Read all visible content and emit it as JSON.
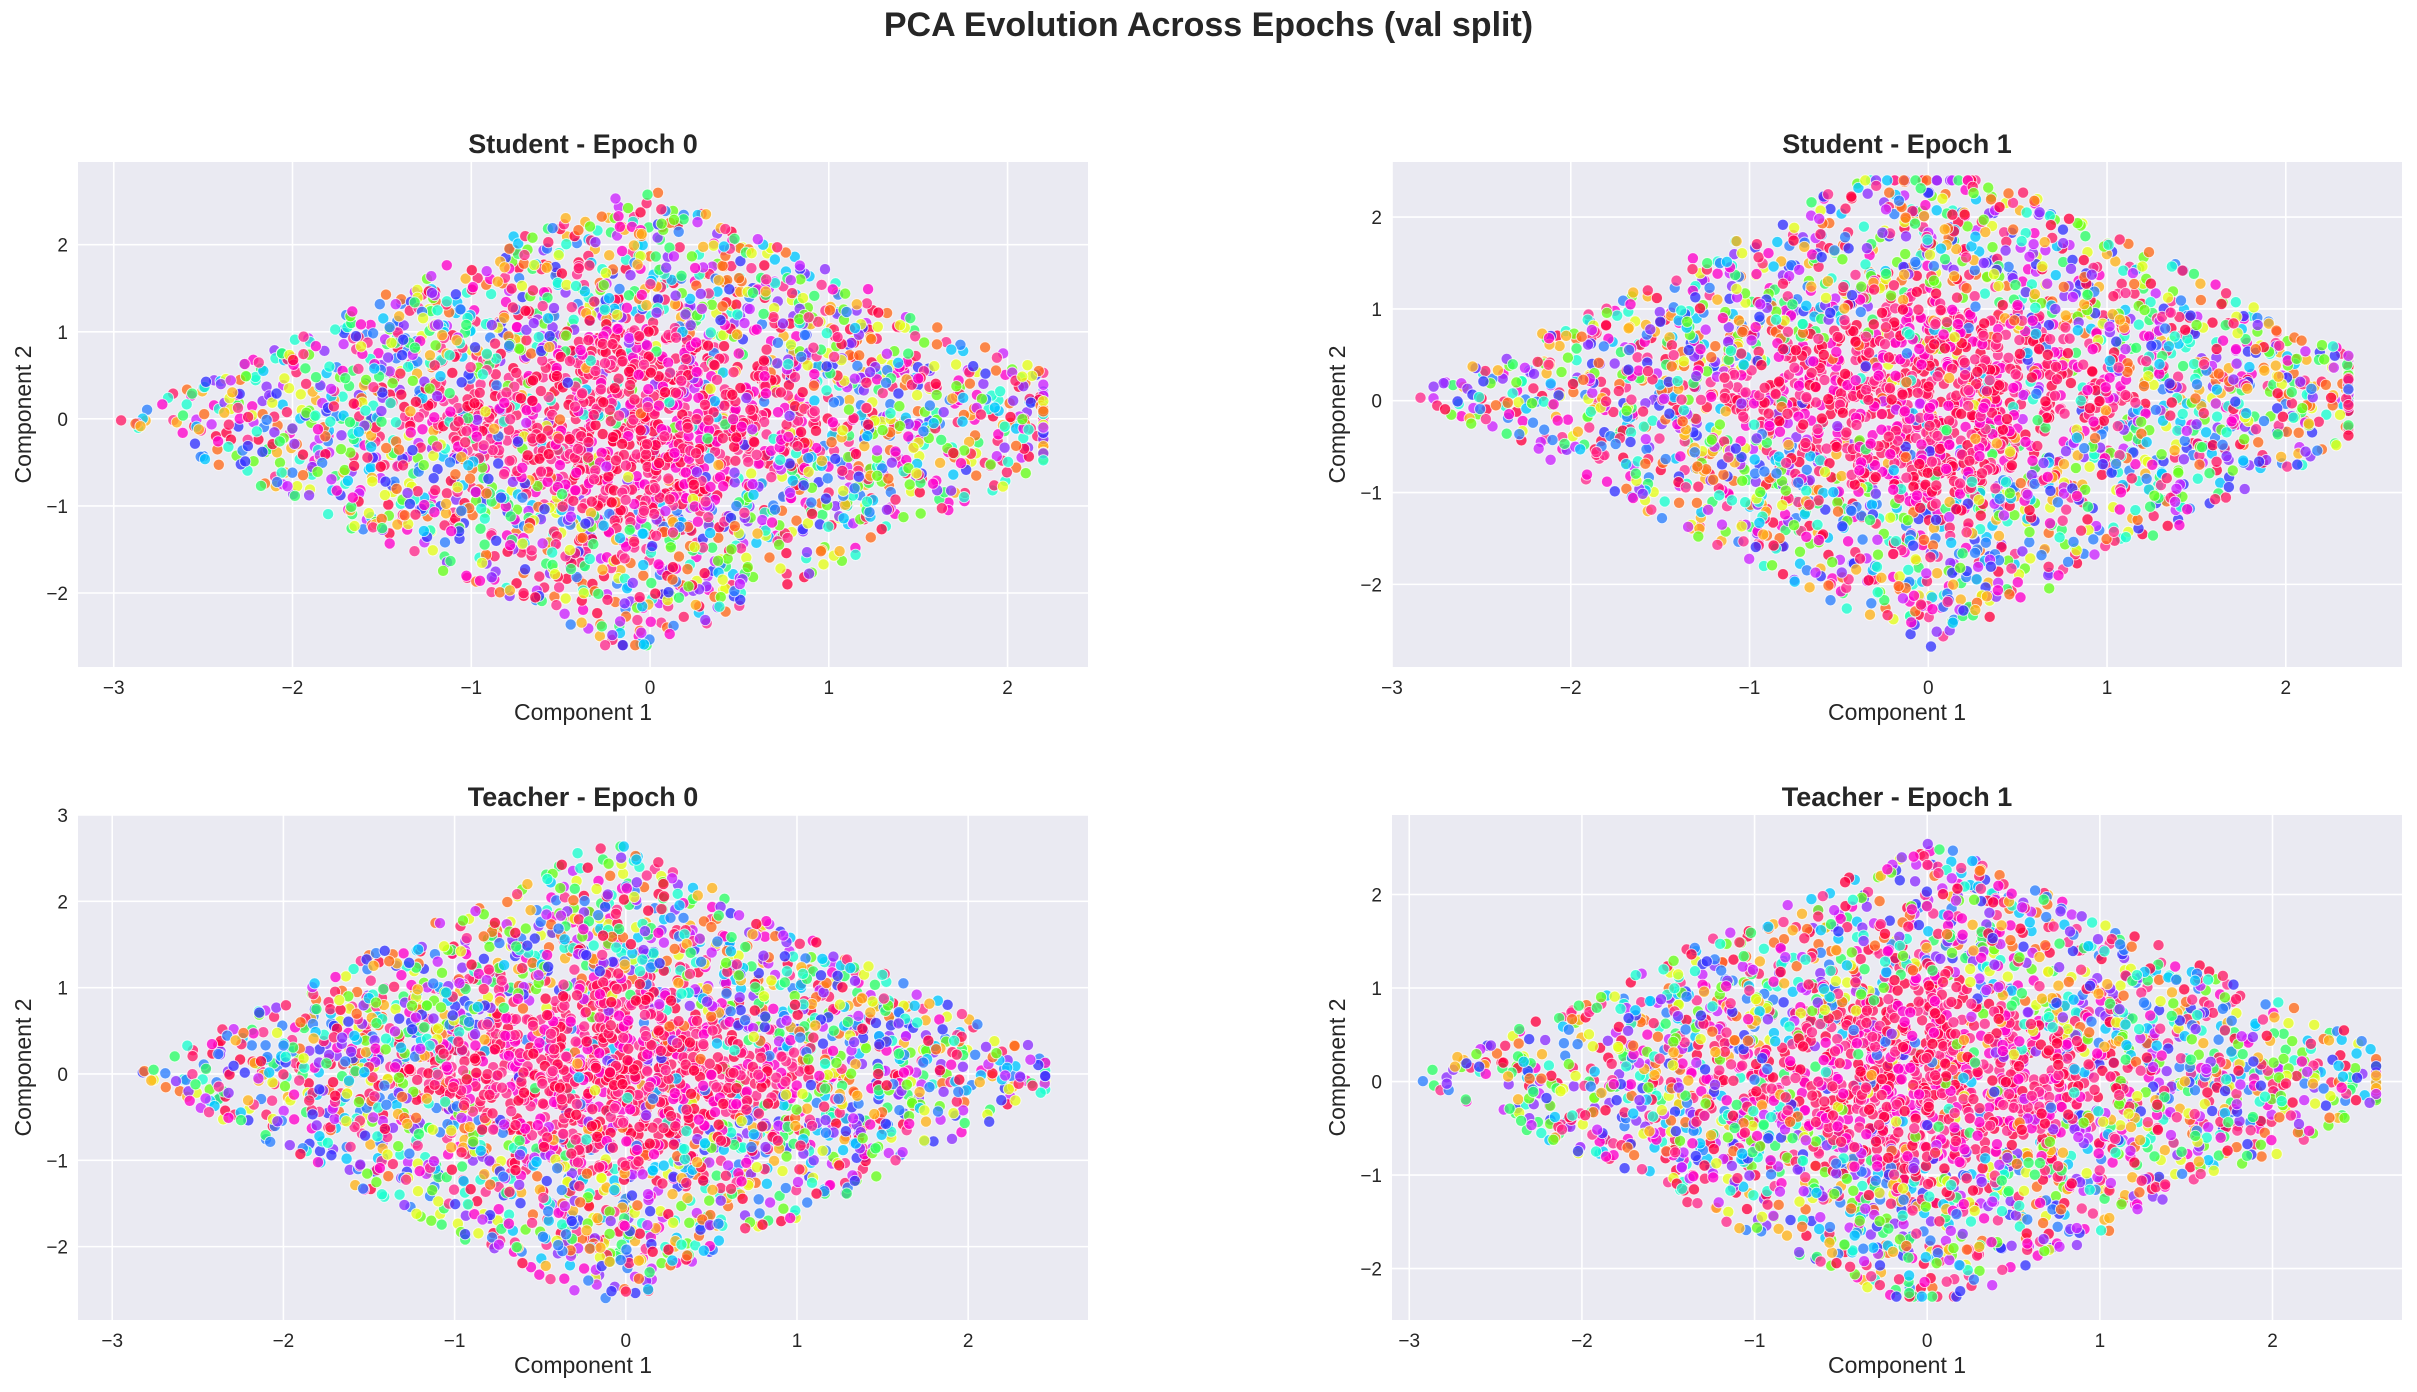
{
  "figure": {
    "title": "PCA Evolution Across Epochs (val split)",
    "background_color": "#ffffff",
    "axes_facecolor": "#EAEAF2",
    "grid_color": "#ffffff",
    "text_color": "#262626",
    "point_colors": [
      "#ff0040",
      "#ff1a66",
      "#ff2a8c",
      "#ff00cc",
      "#cc22ff",
      "#8c2eff",
      "#3333ff",
      "#2a7fff",
      "#00c8ff",
      "#1affd0",
      "#2bff66",
      "#66ff1a",
      "#e6ff1a",
      "#ffb31a",
      "#ff6a1a"
    ]
  },
  "chart_data": [
    {
      "type": "scatter",
      "title": "Student - Epoch 0",
      "xlabel": "Component 1",
      "ylabel": "Component 2",
      "xlim": [
        -3.2,
        2.45
      ],
      "ylim": [
        -2.85,
        2.95
      ],
      "xticks": [
        -3,
        -2,
        -1,
        0,
        1,
        2
      ],
      "yticks": [
        -2,
        -1,
        0,
        1,
        2
      ],
      "xtick_labels": [
        "−3",
        "−2",
        "−1",
        "0",
        "1",
        "2"
      ],
      "ytick_labels": [
        "−2",
        "−1",
        "0",
        "1",
        "2"
      ],
      "grid": true,
      "n_points": 3200,
      "x_range": [
        -3.0,
        2.2
      ],
      "y_range": [
        -2.6,
        2.75
      ],
      "x_center": -0.1,
      "y_center": 0.0
    },
    {
      "type": "scatter",
      "title": "Student - Epoch 1",
      "xlabel": "Component 1",
      "ylabel": "Component 2",
      "xlim": [
        -3.0,
        2.65
      ],
      "ylim": [
        -2.9,
        2.6
      ],
      "xticks": [
        -3,
        -2,
        -1,
        0,
        1,
        2
      ],
      "yticks": [
        -2,
        -1,
        0,
        1,
        2
      ],
      "xtick_labels": [
        "−3",
        "−2",
        "−1",
        "0",
        "1",
        "2"
      ],
      "ytick_labels": [
        "−2",
        "−1",
        "0",
        "1",
        "2"
      ],
      "grid": true,
      "n_points": 3200,
      "x_range": [
        -2.9,
        2.35
      ],
      "y_range": [
        -2.7,
        2.4
      ],
      "x_center": 0.0,
      "y_center": 0.05
    },
    {
      "type": "scatter",
      "title": "Teacher - Epoch 0",
      "xlabel": "Component 1",
      "ylabel": "Component 2",
      "xlim": [
        -3.2,
        2.7
      ],
      "ylim": [
        -2.85,
        3.0
      ],
      "xticks": [
        -3,
        -2,
        -1,
        0,
        1,
        2
      ],
      "yticks": [
        -2,
        -1,
        0,
        1,
        2,
        3
      ],
      "xtick_labels": [
        "−3",
        "−2",
        "−1",
        "0",
        "1",
        "2"
      ],
      "ytick_labels": [
        "−2",
        "−1",
        "0",
        "1",
        "2",
        "3"
      ],
      "grid": true,
      "n_points": 3200,
      "x_range": [
        -2.9,
        2.45
      ],
      "y_range": [
        -2.6,
        2.75
      ],
      "x_center": -0.1,
      "y_center": 0.0
    },
    {
      "type": "scatter",
      "title": "Teacher - Epoch 1",
      "xlabel": "Component 1",
      "ylabel": "Component 2",
      "xlim": [
        -3.1,
        2.75
      ],
      "ylim": [
        -2.55,
        2.85
      ],
      "xticks": [
        -3,
        -2,
        -1,
        0,
        1,
        2
      ],
      "yticks": [
        -2,
        -1,
        0,
        1,
        2
      ],
      "xtick_labels": [
        "−3",
        "−2",
        "−1",
        "0",
        "1",
        "2"
      ],
      "ytick_labels": [
        "−2",
        "−1",
        "0",
        "1",
        "2"
      ],
      "grid": true,
      "n_points": 3200,
      "x_range": [
        -3.0,
        2.6
      ],
      "y_range": [
        -2.3,
        2.6
      ],
      "x_center": 0.0,
      "y_center": 0.05
    }
  ]
}
